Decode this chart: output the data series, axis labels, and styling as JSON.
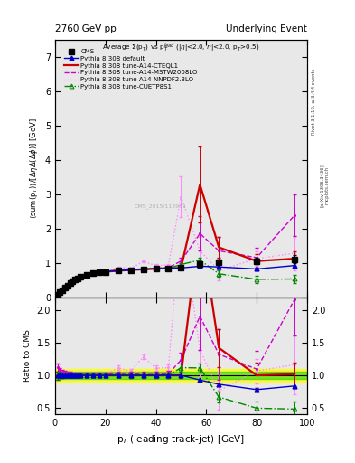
{
  "title_left": "2760 GeV pp",
  "title_right": "Underlying Event",
  "plot_title": "Average Σ(p$_T$) vs p$_T^{lead}$ (|η|<2.0, η|<2.0, p$_T$>0.5)",
  "ylabel_main": "⟨sum(p$_T$)⟩/[ΔηΔ(Δφ)] [GeV]",
  "ylabel_ratio": "Ratio to CMS",
  "xlabel": "p$_T$ (leading track-jet) [GeV]",
  "watermark": "CMS_2015/113951",
  "right_label1": "Rivet 3.1.10, ≥ 3.4M events",
  "right_label2": "[arXiv:1306.3436]",
  "right_label3": "mcplots.cern.ch",
  "cms_x": [
    1.0,
    2.0,
    3.0,
    4.0,
    5.0,
    6.0,
    7.0,
    8.0,
    9.0,
    10.0,
    12.5,
    15.0,
    17.5,
    20.0,
    25.0,
    30.0,
    35.0,
    40.0,
    45.0,
    50.0,
    57.5,
    65.0,
    80.0,
    95.0
  ],
  "cms_y": [
    0.08,
    0.14,
    0.2,
    0.27,
    0.34,
    0.4,
    0.46,
    0.51,
    0.55,
    0.59,
    0.65,
    0.69,
    0.72,
    0.74,
    0.77,
    0.79,
    0.81,
    0.83,
    0.84,
    0.85,
    0.97,
    1.02,
    1.05,
    1.1
  ],
  "cms_yerr": [
    0.005,
    0.006,
    0.007,
    0.008,
    0.009,
    0.01,
    0.011,
    0.012,
    0.013,
    0.014,
    0.016,
    0.018,
    0.02,
    0.022,
    0.025,
    0.028,
    0.03,
    0.033,
    0.036,
    0.04,
    0.06,
    0.07,
    0.09,
    0.12
  ],
  "default_x": [
    1.0,
    2.0,
    3.0,
    4.0,
    5.0,
    6.0,
    7.0,
    8.0,
    9.0,
    10.0,
    12.5,
    15.0,
    17.5,
    20.0,
    25.0,
    30.0,
    35.0,
    40.0,
    45.0,
    50.0,
    57.5,
    65.0,
    80.0,
    95.0
  ],
  "default_y": [
    0.08,
    0.14,
    0.2,
    0.27,
    0.34,
    0.4,
    0.46,
    0.51,
    0.55,
    0.59,
    0.65,
    0.69,
    0.72,
    0.74,
    0.77,
    0.79,
    0.81,
    0.83,
    0.84,
    0.85,
    0.9,
    0.88,
    0.82,
    0.92
  ],
  "cteql1_x": [
    1.0,
    2.0,
    3.0,
    4.0,
    5.0,
    6.0,
    7.0,
    8.0,
    9.0,
    10.0,
    12.5,
    15.0,
    17.5,
    20.0,
    25.0,
    30.0,
    35.0,
    40.0,
    45.0,
    50.0,
    57.5,
    65.0,
    80.0,
    95.0
  ],
  "cteql1_y": [
    0.08,
    0.14,
    0.2,
    0.27,
    0.34,
    0.4,
    0.46,
    0.51,
    0.55,
    0.59,
    0.65,
    0.69,
    0.72,
    0.74,
    0.77,
    0.79,
    0.81,
    0.83,
    0.84,
    0.85,
    3.28,
    1.45,
    1.05,
    1.12
  ],
  "cteql1_yerr": [
    0.005,
    0.006,
    0.007,
    0.008,
    0.009,
    0.01,
    0.011,
    0.012,
    0.013,
    0.014,
    0.016,
    0.018,
    0.02,
    0.022,
    0.025,
    0.028,
    0.03,
    0.033,
    0.036,
    0.04,
    1.1,
    0.3,
    0.2,
    0.2
  ],
  "mstw_x": [
    1.0,
    2.0,
    3.0,
    4.0,
    5.0,
    6.0,
    7.0,
    8.0,
    9.0,
    10.0,
    12.5,
    15.0,
    17.5,
    20.0,
    25.0,
    30.0,
    35.0,
    40.0,
    45.0,
    50.0,
    57.5,
    65.0,
    80.0,
    95.0
  ],
  "mstw_y": [
    0.09,
    0.15,
    0.21,
    0.28,
    0.35,
    0.41,
    0.47,
    0.52,
    0.56,
    0.6,
    0.66,
    0.7,
    0.73,
    0.75,
    0.79,
    0.81,
    0.82,
    0.84,
    0.86,
    1.05,
    1.85,
    1.35,
    1.15,
    2.38
  ],
  "mstw_yerr": [
    0.005,
    0.006,
    0.007,
    0.008,
    0.009,
    0.01,
    0.011,
    0.012,
    0.013,
    0.014,
    0.016,
    0.018,
    0.02,
    0.022,
    0.025,
    0.028,
    0.03,
    0.033,
    0.036,
    0.1,
    0.5,
    0.4,
    0.3,
    0.6
  ],
  "nnpdf_x": [
    1.0,
    2.0,
    3.0,
    4.0,
    5.0,
    6.0,
    7.0,
    8.0,
    9.0,
    10.0,
    12.5,
    15.0,
    17.5,
    20.0,
    25.0,
    30.0,
    35.0,
    40.0,
    45.0,
    50.0,
    57.5,
    65.0,
    80.0,
    95.0
  ],
  "nnpdf_y": [
    0.09,
    0.15,
    0.21,
    0.28,
    0.35,
    0.41,
    0.47,
    0.52,
    0.56,
    0.6,
    0.66,
    0.7,
    0.73,
    0.75,
    0.86,
    0.84,
    1.04,
    0.92,
    0.94,
    2.92,
    1.35,
    0.78,
    1.12,
    1.28
  ],
  "nnpdf_yerr": [
    0.005,
    0.006,
    0.007,
    0.008,
    0.009,
    0.01,
    0.011,
    0.012,
    0.013,
    0.014,
    0.016,
    0.018,
    0.02,
    0.022,
    0.025,
    0.028,
    0.03,
    0.033,
    0.036,
    0.6,
    0.4,
    0.3,
    0.2,
    0.5
  ],
  "cuetp_x": [
    1.0,
    2.0,
    3.0,
    4.0,
    5.0,
    6.0,
    7.0,
    8.0,
    9.0,
    10.0,
    12.5,
    15.0,
    17.5,
    20.0,
    25.0,
    30.0,
    35.0,
    40.0,
    45.0,
    50.0,
    57.5,
    65.0,
    80.0,
    95.0
  ],
  "cuetp_y": [
    0.08,
    0.14,
    0.2,
    0.27,
    0.34,
    0.4,
    0.46,
    0.51,
    0.55,
    0.59,
    0.65,
    0.69,
    0.72,
    0.74,
    0.77,
    0.79,
    0.81,
    0.83,
    0.84,
    0.95,
    1.08,
    0.68,
    0.52,
    0.53
  ],
  "cuetp_yerr": [
    0.005,
    0.006,
    0.007,
    0.008,
    0.009,
    0.01,
    0.011,
    0.012,
    0.013,
    0.014,
    0.016,
    0.018,
    0.02,
    0.022,
    0.025,
    0.028,
    0.03,
    0.033,
    0.036,
    0.05,
    0.07,
    0.09,
    0.11,
    0.13
  ],
  "xlim": [
    0,
    100
  ],
  "ylim_main": [
    0,
    7.5
  ],
  "ylim_ratio": [
    0.4,
    2.2
  ],
  "yticks_main": [
    0,
    1,
    2,
    3,
    4,
    5,
    6,
    7
  ],
  "yticks_ratio": [
    0.5,
    1.0,
    1.5,
    2.0
  ],
  "color_cms": "#000000",
  "color_default": "#0000cc",
  "color_cteql1": "#cc0000",
  "color_mstw": "#cc00cc",
  "color_nnpdf": "#ff88ff",
  "color_cuetp": "#008800",
  "green_band": 0.05,
  "yellow_band": 0.1
}
